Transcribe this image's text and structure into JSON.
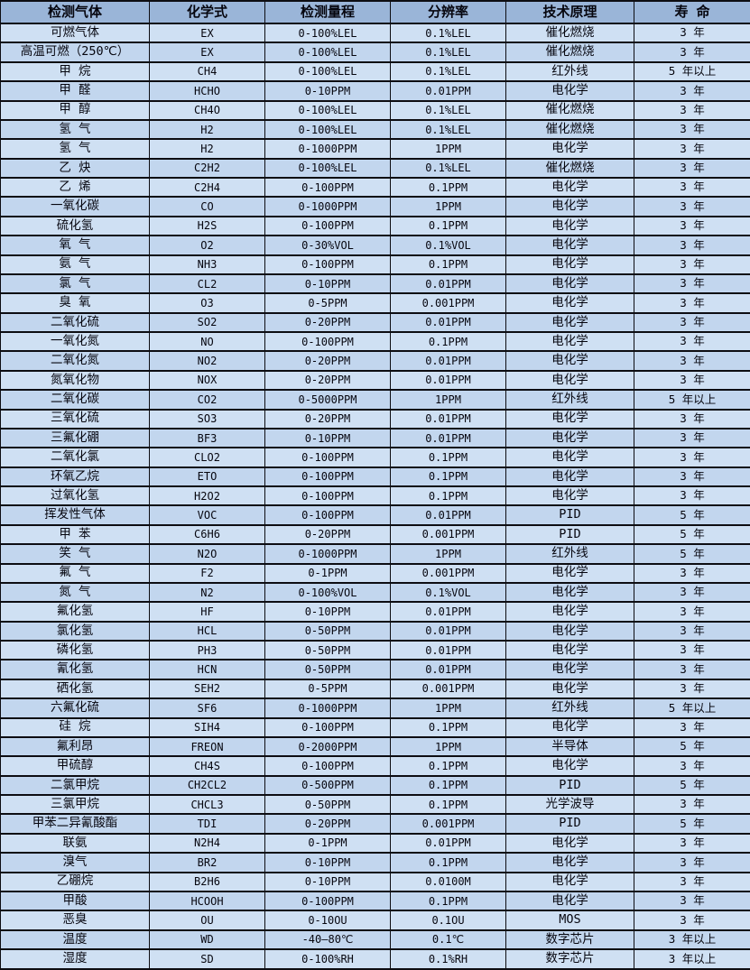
{
  "colors": {
    "header_bg": "#9ab5d8",
    "row_light": "#cfe0f3",
    "row_dark": "#c2d6ee",
    "border": "#0d0d12",
    "text": "#06060f"
  },
  "table": {
    "columns": [
      "检测气体",
      "化学式",
      "检测量程",
      "分辨率",
      "技术原理",
      "寿 命"
    ],
    "rows": [
      [
        "可燃气体",
        "EX",
        "0-100%LEL",
        "0.1%LEL",
        "催化燃烧",
        "3 年"
      ],
      [
        "高温可燃（250℃）",
        "EX",
        "0-100%LEL",
        "0.1%LEL",
        "催化燃烧",
        "3 年"
      ],
      [
        "甲 烷",
        "CH4",
        "0-100%LEL",
        "0.1%LEL",
        "红外线",
        "5 年以上"
      ],
      [
        "甲 醛",
        "HCHO",
        "0-10PPM",
        "0.01PPM",
        "电化学",
        "3 年"
      ],
      [
        "甲 醇",
        "CH4O",
        "0-100%LEL",
        "0.1%LEL",
        "催化燃烧",
        "3 年"
      ],
      [
        "氢 气",
        "H2",
        "0-100%LEL",
        "0.1%LEL",
        "催化燃烧",
        "3 年"
      ],
      [
        "氢 气",
        "H2",
        "0-1000PPM",
        "1PPM",
        "电化学",
        "3 年"
      ],
      [
        "乙 炔",
        "C2H2",
        "0-100%LEL",
        "0.1%LEL",
        "催化燃烧",
        "3 年"
      ],
      [
        "乙 烯",
        "C2H4",
        "0-100PPM",
        "0.1PPM",
        "电化学",
        "3 年"
      ],
      [
        "一氧化碳",
        "CO",
        "0-1000PPM",
        "1PPM",
        "电化学",
        "3 年"
      ],
      [
        "硫化氢",
        "H2S",
        "0-100PPM",
        "0.1PPM",
        "电化学",
        "3 年"
      ],
      [
        "氧 气",
        "O2",
        "0-30%VOL",
        "0.1%VOL",
        "电化学",
        "3 年"
      ],
      [
        "氨 气",
        "NH3",
        "0-100PPM",
        "0.1PPM",
        "电化学",
        "3 年"
      ],
      [
        "氯 气",
        "CL2",
        "0-10PPM",
        "0.01PPM",
        "电化学",
        "3 年"
      ],
      [
        "臭 氧",
        "O3",
        "0-5PPM",
        "0.001PPM",
        "电化学",
        "3 年"
      ],
      [
        "二氧化硫",
        "SO2",
        "0-20PPM",
        "0.01PPM",
        "电化学",
        "3 年"
      ],
      [
        "一氧化氮",
        "NO",
        "0-100PPM",
        "0.1PPM",
        "电化学",
        "3 年"
      ],
      [
        "二氧化氮",
        "NO2",
        "0-20PPM",
        "0.01PPM",
        "电化学",
        "3 年"
      ],
      [
        "氮氧化物",
        "NOX",
        "0-20PPM",
        "0.01PPM",
        "电化学",
        "3 年"
      ],
      [
        "二氧化碳",
        "CO2",
        "0-5000PPM",
        "1PPM",
        "红外线",
        "5 年以上"
      ],
      [
        "三氧化硫",
        "SO3",
        "0-20PPM",
        "0.01PPM",
        "电化学",
        "3 年"
      ],
      [
        "三氟化硼",
        "BF3",
        "0-10PPM",
        "0.01PPM",
        "电化学",
        "3 年"
      ],
      [
        "二氧化氯",
        "CLO2",
        "0-100PPM",
        "0.1PPM",
        "电化学",
        "3 年"
      ],
      [
        "环氧乙烷",
        "ETO",
        "0-100PPM",
        "0.1PPM",
        "电化学",
        "3 年"
      ],
      [
        "过氧化氢",
        "H2O2",
        "0-100PPM",
        "0.1PPM",
        "电化学",
        "3 年"
      ],
      [
        "挥发性气体",
        "VOC",
        "0-100PPM",
        "0.01PPM",
        "PID",
        "5 年"
      ],
      [
        "甲 苯",
        "C6H6",
        "0-20PPM",
        "0.001PPM",
        "PID",
        "5 年"
      ],
      [
        "笑 气",
        "N2O",
        "0-1000PPM",
        "1PPM",
        "红外线",
        "5 年"
      ],
      [
        "氟 气",
        "F2",
        "0-1PPM",
        "0.001PPM",
        "电化学",
        "3 年"
      ],
      [
        "氮 气",
        "N2",
        "0-100%VOL",
        "0.1%VOL",
        "电化学",
        "3 年"
      ],
      [
        "氟化氢",
        "HF",
        "0-10PPM",
        "0.01PPM",
        "电化学",
        "3 年"
      ],
      [
        "氯化氢",
        "HCL",
        "0-50PPM",
        "0.01PPM",
        "电化学",
        "3 年"
      ],
      [
        "磷化氢",
        "PH3",
        "0-50PPM",
        "0.01PPM",
        "电化学",
        "3 年"
      ],
      [
        "氰化氢",
        "HCN",
        "0-50PPM",
        "0.01PPM",
        "电化学",
        "3 年"
      ],
      [
        "硒化氢",
        "SEH2",
        "0-5PPM",
        "0.001PPM",
        "电化学",
        "3 年"
      ],
      [
        "六氟化硫",
        "SF6",
        "0-1000PPM",
        "1PPM",
        "红外线",
        "5 年以上"
      ],
      [
        "硅 烷",
        "SIH4",
        "0-100PPM",
        "0.1PPM",
        "电化学",
        "3 年"
      ],
      [
        "氟利昂",
        "FREON",
        "0-2000PPM",
        "1PPM",
        "半导体",
        "5 年"
      ],
      [
        "甲硫醇",
        "CH4S",
        "0-100PPM",
        "0.1PPM",
        "电化学",
        "3 年"
      ],
      [
        "二氯甲烷",
        "CH2CL2",
        "0-500PPM",
        "0.1PPM",
        "PID",
        "5 年"
      ],
      [
        "三氯甲烷",
        "CHCL3",
        "0-50PPM",
        "0.1PPM",
        "光学波导",
        "3 年"
      ],
      [
        "甲苯二异氰酸酯",
        "TDI",
        "0-20PPM",
        "0.001PPM",
        "PID",
        "5 年"
      ],
      [
        "联氨",
        "N2H4",
        "0-1PPM",
        "0.01PPM",
        "电化学",
        "3 年"
      ],
      [
        "溴气",
        "BR2",
        "0-10PPM",
        "0.1PPM",
        "电化学",
        "3 年"
      ],
      [
        "乙硼烷",
        "B2H6",
        "0-10PPM",
        "0.0100M",
        "电化学",
        "3 年"
      ],
      [
        "甲酸",
        "HCOOH",
        "0-100PPM",
        "0.1PPM",
        "电化学",
        "3 年"
      ],
      [
        "恶臭",
        "OU",
        "0-10OU",
        "0.1OU",
        "MOS",
        "3 年"
      ],
      [
        "温度",
        "WD",
        "-40—80℃",
        "0.1℃",
        "数字芯片",
        "3 年以上"
      ],
      [
        "湿度",
        "SD",
        "0-100%RH",
        "0.1%RH",
        "数字芯片",
        "3 年以上"
      ]
    ]
  }
}
